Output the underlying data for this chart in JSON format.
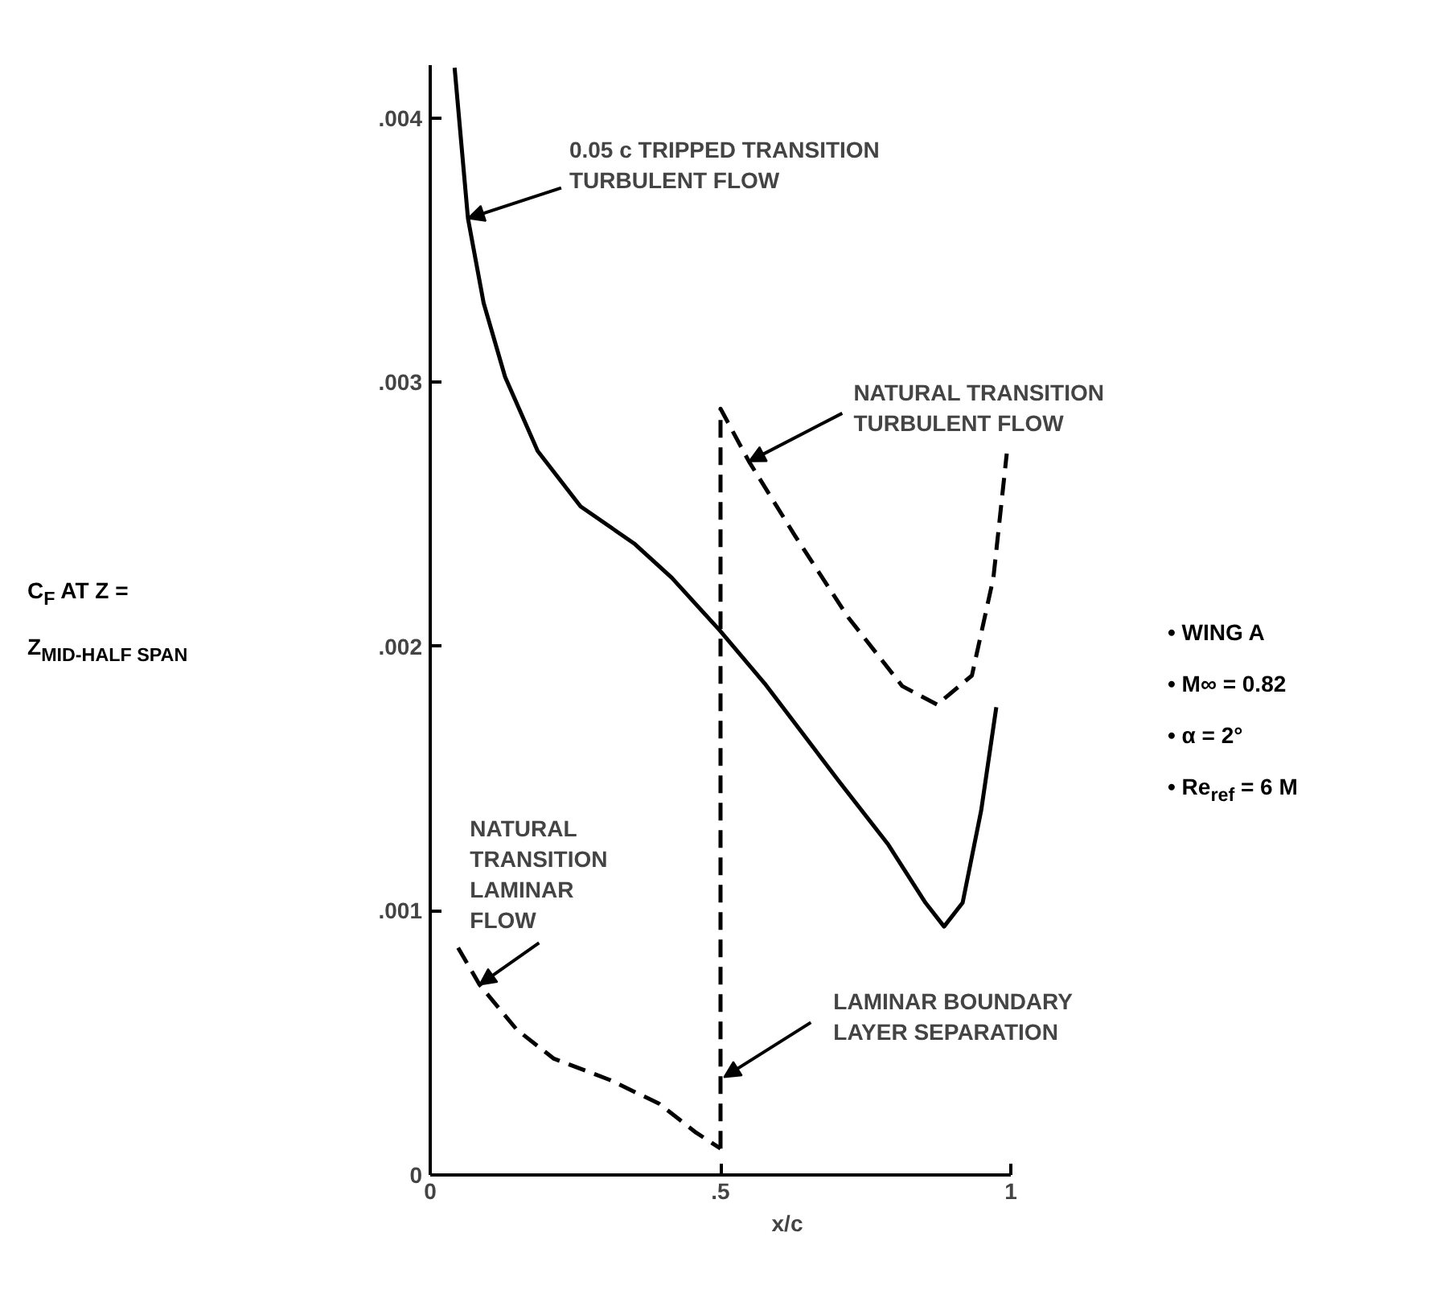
{
  "chart_data": {
    "type": "line",
    "xlabel": "x/c",
    "ylabel": "C$_{F}$ AT Z =\nZ$_{MID-HALF SPAN}$",
    "xlim": [
      0,
      1
    ],
    "ylim": [
      0,
      0.0042
    ],
    "xticks": [
      0,
      {
        "value": 0.5,
        "label": ".5"
      },
      1
    ],
    "yticks": [
      0,
      {
        "value": 0.001,
        "label": ".001"
      },
      {
        "value": 0.002,
        "label": ".002"
      },
      {
        "value": 0.003,
        "label": ".003"
      },
      {
        "value": 0.004,
        "label": ".004"
      }
    ],
    "grid": false,
    "marker": "none",
    "series": [
      {
        "color": "#000000",
        "line_style": "solid",
        "x": [
          0.042,
          0.065,
          0.092,
          0.129,
          0.185,
          0.259,
          0.351,
          0.416,
          0.499,
          0.576,
          0.704,
          0.789,
          0.853,
          0.885,
          0.917,
          0.949,
          0.975
        ],
        "values": [
          0.00419,
          0.00362,
          0.0033,
          0.00302,
          0.00274,
          0.00253,
          0.00239,
          0.00226,
          0.00206,
          0.00186,
          0.00149,
          0.00125,
          0.00103,
          0.00094,
          0.00103,
          0.00138,
          0.00177
        ]
      },
      {
        "color": "#000000",
        "line_style": "dashed",
        "x": [
          0.048,
          0.085,
          0.149,
          0.213,
          0.309,
          0.394,
          0.458,
          0.5
        ],
        "values": [
          0.00086,
          0.00072,
          0.00055,
          0.00044,
          0.00036,
          0.00027,
          0.00016,
          0.0001
        ]
      },
      {
        "color": "#000000",
        "line_style": "dashed",
        "x": [
          0.5,
          0.5,
          0.549,
          0.628,
          0.72,
          0.813,
          0.873,
          0.933,
          0.97,
          0.993
        ],
        "values": [
          0.0001,
          0.0029,
          0.0027,
          0.00242,
          0.00211,
          0.00185,
          0.00178,
          0.00189,
          0.00226,
          0.00273
        ]
      }
    ],
    "annotations": [
      {
        "text": "0.05 c TRIPPED TRANSITION\nTURBULENT FLOW",
        "x": 0.065,
        "y": 0.00362
      },
      {
        "text": "NATURAL TRANSITION\nTURBULENT FLOW",
        "x": 0.549,
        "y": 0.0027
      },
      {
        "text": "NATURAL\nTRANSITION\nLAMINAR\nFLOW",
        "x": 0.085,
        "y": 0.00072
      },
      {
        "text": "LAMINAR BOUNDARY\nLAYER SEPARATION",
        "x": 0.506,
        "y": 0.00037
      },
      "• WING A",
      "• M∞ = 0.82",
      "• α = 2°",
      "• Re$_{ref}$ = 6 M"
    ]
  }
}
